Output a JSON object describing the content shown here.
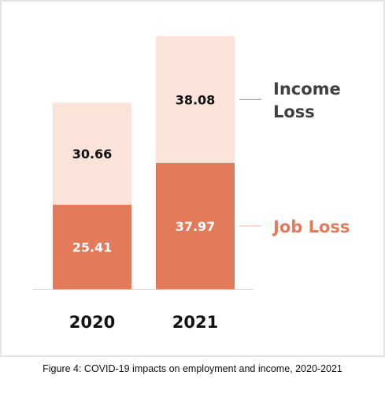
{
  "chart_data": {
    "type": "bar",
    "stacked": true,
    "categories": [
      "2020",
      "2021"
    ],
    "series": [
      {
        "name": "Job Loss",
        "values": [
          25.41,
          37.97
        ],
        "color": "#e37a5a",
        "label_color": "#ffffff"
      },
      {
        "name": "Income Loss",
        "values": [
          30.66,
          38.08
        ],
        "color": "#fbe3d9",
        "label_color": "#111111"
      }
    ],
    "axis_line_color": "#d9d9d9",
    "legend_placement": "right, aligned with each segment",
    "legend": [
      {
        "series": "Income Loss",
        "lines": [
          "Income",
          "Loss"
        ],
        "color": "#404040"
      },
      {
        "series": "Job Loss",
        "lines": [
          "Job Loss"
        ],
        "color": "#e37a5a"
      }
    ],
    "grid": false,
    "ylim": [
      0,
      76.05
    ]
  },
  "caption": "Figure 4: COVID-19 impacts on employment and income, 2020-2021"
}
